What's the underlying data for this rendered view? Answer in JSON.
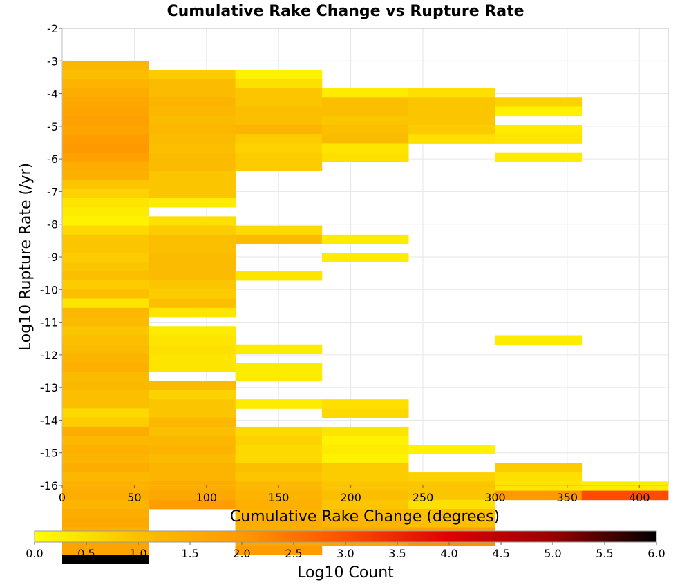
{
  "chart_data": {
    "type": "heatmap",
    "title": "Cumulative Rake Change vs Rupture Rate",
    "xlabel": "Cumulative Rake Change (degrees)",
    "ylabel": "Log10 Rupture Rate (/yr)",
    "xlim": [
      0,
      420
    ],
    "ylim": [
      -16,
      -2
    ],
    "x_ticks": [
      0,
      50,
      100,
      150,
      200,
      250,
      300,
      350,
      400
    ],
    "y_ticks": [
      -2,
      -3,
      -4,
      -5,
      -6,
      -7,
      -8,
      -9,
      -10,
      -11,
      -12,
      -13,
      -14,
      -15,
      -16
    ],
    "grid": true,
    "x_bin_width": 60,
    "y_bin_height": 0.28,
    "colorbar": {
      "label": "Log10 Count",
      "range": [
        0,
        6
      ],
      "ticks": [
        "0.0",
        "0.5",
        "1.0",
        "1.5",
        "2.0",
        "2.5",
        "3.0",
        "3.5",
        "4.0",
        "4.5",
        "5.0",
        "5.5",
        "6.0"
      ],
      "colors": [
        "#ffff00",
        "#fbbf00",
        "#ff9900",
        "#ff4d00",
        "#e00000",
        "#990000",
        "#000000"
      ]
    },
    "columns": [
      {
        "x_start": 0,
        "y_start": -3.0,
        "values": [
          1.2,
          1.0,
          1.3,
          1.5,
          1.6,
          1.7,
          1.8,
          1.7,
          1.9,
          2.0,
          1.8,
          1.5,
          1.4,
          0.9,
          0.7,
          0.4,
          0.3,
          0.2,
          0.6,
          0.9,
          0.9,
          0.8,
          0.9,
          1.0,
          0.8,
          1.0,
          0.4,
          1.2,
          1.1,
          0.9,
          1.0,
          1.1,
          1.3,
          1.4,
          1.1,
          1.2,
          1.0,
          1.0,
          0.6,
          0.8,
          1.5,
          1.2,
          1.4,
          1.3,
          1.5,
          1.2,
          1.4,
          1.5,
          1.3,
          1.5,
          1.6,
          1.4,
          1.7,
          1.7,
          6.0
        ]
      },
      {
        "x_start": 60,
        "y_start": -3.28,
        "values": [
          0.8,
          1.1,
          1.1,
          1.3,
          1.2,
          1.1,
          1.2,
          1.1,
          1.0,
          1.1,
          1.1,
          0.9,
          0.9,
          0.9,
          0.3,
          null,
          0.5,
          0.8,
          1.0,
          1.0,
          1.1,
          1.1,
          1.1,
          0.9,
          0.8,
          1.0,
          0.4,
          null,
          0.3,
          0.4,
          0.5,
          0.4,
          0.4,
          null,
          1.1,
          0.7,
          0.9,
          0.9,
          1.2,
          1.0,
          1.2,
          1.3,
          1.1,
          1.3,
          1.3,
          1.5,
          1.6,
          1.9
        ]
      },
      {
        "x_start": 120,
        "y_start": -3.28,
        "values": [
          0.2,
          0.5,
          0.9,
          0.9,
          1.0,
          1.0,
          1.3,
          0.8,
          0.7,
          0.8,
          0.8,
          null,
          null,
          null,
          null,
          null,
          null,
          0.6,
          1.1,
          null,
          null,
          null,
          0.4,
          null,
          null,
          null,
          null,
          null,
          null,
          null,
          0.3,
          null,
          0.3,
          0.3,
          null,
          null,
          0.3,
          null,
          null,
          0.6,
          0.7,
          0.6,
          0.6,
          1.0,
          0.9,
          1.2,
          1.3,
          1.4,
          1.3,
          1.5,
          1.5,
          1.6,
          1.9
        ]
      },
      {
        "x_start": 180,
        "y_start": -3.84,
        "values": [
          0.3,
          1.0,
          1.0,
          0.9,
          1.0,
          1.1,
          0.4,
          0.5,
          null,
          null,
          null,
          null,
          null,
          null,
          null,
          null,
          0.3,
          null,
          0.3,
          null,
          null,
          null,
          null,
          null,
          null,
          null,
          null,
          null,
          null,
          null,
          null,
          null,
          null,
          null,
          0.5,
          0.6,
          null,
          0.4,
          0.2,
          0.3,
          0.2,
          0.8,
          0.8,
          0.9,
          1.0,
          0.9,
          1.1,
          1.3,
          1.6,
          1.7
        ]
      },
      {
        "x_start": 240,
        "y_start": -3.84,
        "values": [
          0.5,
          0.9,
          0.9,
          0.9,
          0.8,
          0.5,
          null,
          null,
          null,
          null,
          null,
          null,
          null,
          null,
          null,
          null,
          null,
          null,
          null,
          null,
          null,
          null,
          null,
          null,
          null,
          null,
          null,
          null,
          null,
          null,
          null,
          null,
          null,
          null,
          null,
          null,
          null,
          null,
          null,
          0.2,
          null,
          null,
          0.7,
          0.9,
          0.9,
          0.5,
          1.0,
          1.0,
          1.8,
          2.1
        ]
      },
      {
        "x_start": 300,
        "y_start": -4.12,
        "values": [
          0.7,
          0.2,
          null,
          0.3,
          0.4,
          null,
          0.3,
          null,
          null,
          null,
          null,
          null,
          null,
          null,
          null,
          null,
          null,
          null,
          null,
          null,
          null,
          null,
          null,
          null,
          null,
          null,
          0.3,
          null,
          null,
          null,
          null,
          null,
          null,
          null,
          null,
          null,
          null,
          null,
          null,
          null,
          0.8,
          0.5,
          0.4,
          2.0
        ]
      },
      {
        "x_start": 360,
        "y_start": -15.88,
        "values": [
          0.3,
          3.0
        ]
      }
    ]
  }
}
